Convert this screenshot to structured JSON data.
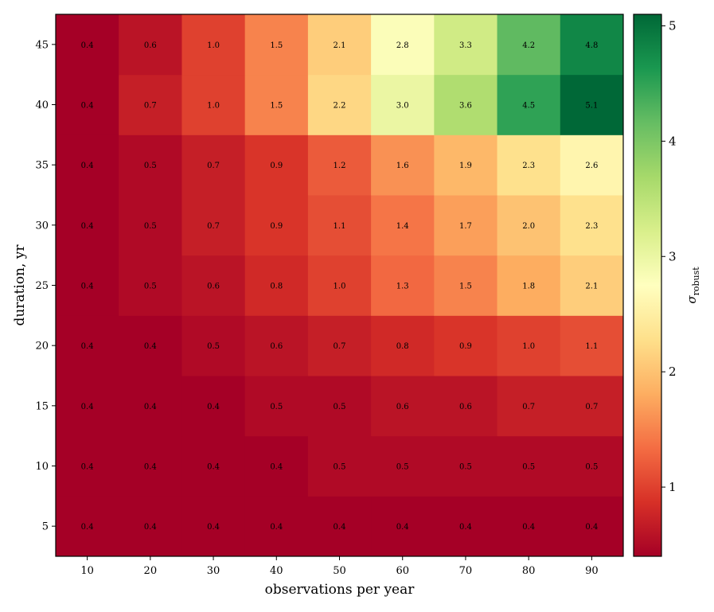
{
  "chart_data": {
    "type": "heatmap",
    "title": "",
    "xlabel": "observations per year",
    "ylabel": "duration, yr",
    "x": [
      10,
      20,
      30,
      40,
      50,
      60,
      70,
      80,
      90
    ],
    "y": [
      5,
      10,
      15,
      20,
      25,
      30,
      35,
      40,
      45
    ],
    "values": [
      [
        0.4,
        0.4,
        0.4,
        0.4,
        0.4,
        0.4,
        0.4,
        0.4,
        0.4
      ],
      [
        0.4,
        0.4,
        0.4,
        0.4,
        0.5,
        0.5,
        0.5,
        0.5,
        0.5
      ],
      [
        0.4,
        0.4,
        0.4,
        0.5,
        0.5,
        0.6,
        0.6,
        0.7,
        0.7
      ],
      [
        0.4,
        0.4,
        0.5,
        0.6,
        0.7,
        0.8,
        0.9,
        1.0,
        1.1
      ],
      [
        0.4,
        0.5,
        0.6,
        0.8,
        1.0,
        1.3,
        1.5,
        1.8,
        2.1
      ],
      [
        0.4,
        0.5,
        0.7,
        0.9,
        1.1,
        1.4,
        1.7,
        2.0,
        2.3
      ],
      [
        0.4,
        0.5,
        0.7,
        0.9,
        1.2,
        1.6,
        1.9,
        2.3,
        2.6
      ],
      [
        0.4,
        0.7,
        1.0,
        1.5,
        2.2,
        3.0,
        3.6,
        4.5,
        5.1
      ],
      [
        0.4,
        0.6,
        1.0,
        1.5,
        2.1,
        2.8,
        3.3,
        4.2,
        4.8
      ]
    ],
    "value_labels": [
      [
        "0.4",
        "0.4",
        "0.4",
        "0.4",
        "0.4",
        "0.4",
        "0.4",
        "0.4",
        "0.4"
      ],
      [
        "0.4",
        "0.4",
        "0.4",
        "0.4",
        "0.5",
        "0.5",
        "0.5",
        "0.5",
        "0.5"
      ],
      [
        "0.4",
        "0.4",
        "0.4",
        "0.5",
        "0.5",
        "0.6",
        "0.6",
        "0.7",
        "0.7"
      ],
      [
        "0.4",
        "0.4",
        "0.5",
        "0.6",
        "0.7",
        "0.8",
        "0.9",
        "1.0",
        "1.1"
      ],
      [
        "0.4",
        "0.5",
        "0.6",
        "0.8",
        "1.0",
        "1.3",
        "1.5",
        "1.8",
        "2.1"
      ],
      [
        "0.4",
        "0.5",
        "0.7",
        "0.9",
        "1.1",
        "1.4",
        "1.7",
        "2.0",
        "2.3"
      ],
      [
        "0.4",
        "0.5",
        "0.7",
        "0.9",
        "1.2",
        "1.6",
        "1.9",
        "2.3",
        "2.6"
      ],
      [
        "0.4",
        "0.7",
        "1.0",
        "1.5",
        "2.2",
        "3.0",
        "3.6",
        "4.5",
        "5.1"
      ],
      [
        "0.4",
        "0.6",
        "1.0",
        "1.5",
        "2.1",
        "2.8",
        "3.3",
        "4.2",
        "4.8"
      ]
    ],
    "x_tick_labels": [
      "10",
      "20",
      "30",
      "40",
      "50",
      "60",
      "70",
      "80",
      "90"
    ],
    "y_tick_labels": [
      "5",
      "10",
      "15",
      "20",
      "25",
      "30",
      "35",
      "40",
      "45"
    ],
    "colorbar": {
      "label_symbol": "σ",
      "label_subscript": "robust",
      "vmin": 0.4,
      "vmax": 5.1,
      "ticks": [
        1,
        2,
        3,
        4,
        5
      ],
      "tick_labels": [
        "1",
        "2",
        "3",
        "4",
        "5"
      ],
      "colormap": "RdYlGn",
      "colormap_stops": [
        "#a50026",
        "#d73027",
        "#f46d43",
        "#fdae61",
        "#fee08b",
        "#ffffbf",
        "#d9ef8b",
        "#a6d96a",
        "#66bd63",
        "#1a9850",
        "#006837"
      ]
    }
  }
}
